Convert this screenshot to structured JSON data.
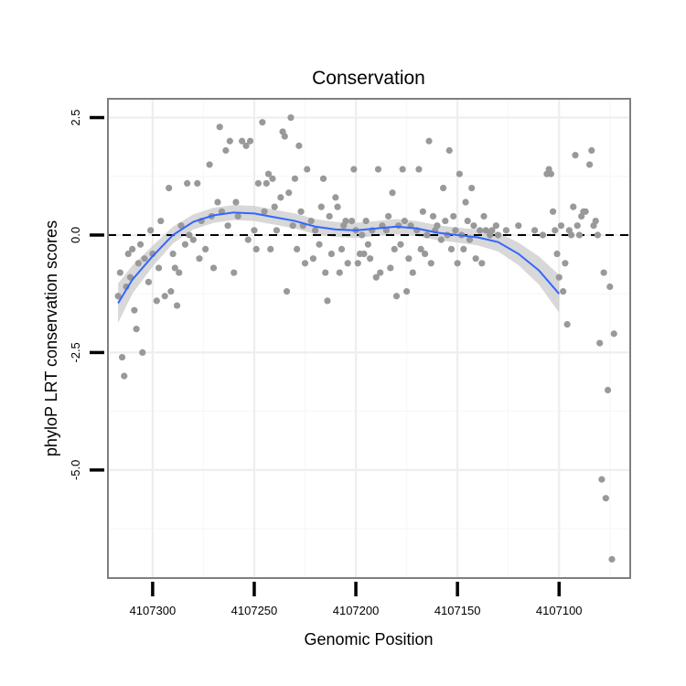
{
  "chart_data": {
    "type": "scatter",
    "title": "Conservation",
    "xlabel": "Genomic Position",
    "ylabel": "phyloP LRT conservation scores",
    "x_reversed": true,
    "xlim": [
      4107322,
      4107065
    ],
    "ylim": [
      -7.3,
      2.9
    ],
    "x_ticks": [
      4107300,
      4107250,
      4107200,
      4107150,
      4107100
    ],
    "x_tick_labels": [
      "4107300",
      "4107250",
      "4107200",
      "4107150",
      "4107100"
    ],
    "y_ticks": [
      2.5,
      0.0,
      -2.5,
      -5.0
    ],
    "y_tick_labels": [
      "2.5",
      "0.0",
      "-2.5",
      "-5.0"
    ],
    "reference_line": {
      "y": 0,
      "style": "dashed",
      "color": "#000000"
    },
    "point_color": "#999999",
    "smooth_color": "#3366ff",
    "band_color": "#c8c8c8",
    "grid": true,
    "points": [
      [
        4107317,
        -1.3
      ],
      [
        4107316,
        -0.8
      ],
      [
        4107315,
        -2.6
      ],
      [
        4107314,
        -3.0
      ],
      [
        4107313,
        -1.1
      ],
      [
        4107312,
        -0.4
      ],
      [
        4107311,
        -0.9
      ],
      [
        4107310,
        -0.3
      ],
      [
        4107309,
        -1.6
      ],
      [
        4107308,
        -2.0
      ],
      [
        4107307,
        -0.6
      ],
      [
        4107306,
        -0.2
      ],
      [
        4107305,
        -2.5
      ],
      [
        4107304,
        -0.5
      ],
      [
        4107302,
        -1.0
      ],
      [
        4107301,
        0.1
      ],
      [
        4107300,
        -0.4
      ],
      [
        4107298,
        -1.4
      ],
      [
        4107297,
        -0.7
      ],
      [
        4107296,
        0.3
      ],
      [
        4107294,
        -1.3
      ],
      [
        4107292,
        1.0
      ],
      [
        4107291,
        -1.2
      ],
      [
        4107290,
        -0.4
      ],
      [
        4107289,
        -0.7
      ],
      [
        4107288,
        -1.5
      ],
      [
        4107287,
        -0.8
      ],
      [
        4107286,
        0.2
      ],
      [
        4107284,
        -0.2
      ],
      [
        4107283,
        1.1
      ],
      [
        4107282,
        0.0
      ],
      [
        4107280,
        -0.1
      ],
      [
        4107278,
        1.1
      ],
      [
        4107277,
        -0.5
      ],
      [
        4107276,
        0.3
      ],
      [
        4107274,
        -0.3
      ],
      [
        4107272,
        1.5
      ],
      [
        4107271,
        0.4
      ],
      [
        4107270,
        -0.7
      ],
      [
        4107268,
        0.7
      ],
      [
        4107267,
        2.3
      ],
      [
        4107266,
        0.5
      ],
      [
        4107264,
        1.8
      ],
      [
        4107263,
        0.2
      ],
      [
        4107262,
        2.0
      ],
      [
        4107260,
        -0.8
      ],
      [
        4107259,
        0.7
      ],
      [
        4107258,
        0.4
      ],
      [
        4107256,
        2.0
      ],
      [
        4107254,
        1.9
      ],
      [
        4107253,
        -0.1
      ],
      [
        4107252,
        2.0
      ],
      [
        4107250,
        0.1
      ],
      [
        4107249,
        -0.3
      ],
      [
        4107248,
        1.1
      ],
      [
        4107246,
        2.4
      ],
      [
        4107245,
        0.5
      ],
      [
        4107244,
        1.1
      ],
      [
        4107243,
        1.3
      ],
      [
        4107242,
        -0.3
      ],
      [
        4107241,
        1.2
      ],
      [
        4107240,
        0.6
      ],
      [
        4107239,
        0.1
      ],
      [
        4107237,
        0.8
      ],
      [
        4107236,
        2.2
      ],
      [
        4107235,
        2.1
      ],
      [
        4107234,
        -1.2
      ],
      [
        4107233,
        0.9
      ],
      [
        4107232,
        2.5
      ],
      [
        4107231,
        0.2
      ],
      [
        4107230,
        1.2
      ],
      [
        4107229,
        -0.3
      ],
      [
        4107228,
        1.9
      ],
      [
        4107227,
        0.5
      ],
      [
        4107226,
        0.2
      ],
      [
        4107225,
        -0.6
      ],
      [
        4107224,
        1.4
      ],
      [
        4107222,
        0.3
      ],
      [
        4107221,
        -0.5
      ],
      [
        4107220,
        0.1
      ],
      [
        4107218,
        -0.2
      ],
      [
        4107217,
        0.6
      ],
      [
        4107216,
        1.2
      ],
      [
        4107215,
        -0.8
      ],
      [
        4107214,
        -1.4
      ],
      [
        4107213,
        0.4
      ],
      [
        4107212,
        -0.4
      ],
      [
        4107210,
        0.8
      ],
      [
        4107209,
        0.6
      ],
      [
        4107208,
        -0.8
      ],
      [
        4107207,
        -0.3
      ],
      [
        4107206,
        0.2
      ],
      [
        4107205,
        0.3
      ],
      [
        4107204,
        -0.6
      ],
      [
        4107202,
        0.3
      ],
      [
        4107201,
        1.4
      ],
      [
        4107200,
        0.1
      ],
      [
        4107199,
        -0.6
      ],
      [
        4107198,
        -0.4
      ],
      [
        4107197,
        0.0
      ],
      [
        4107196,
        -0.4
      ],
      [
        4107195,
        0.3
      ],
      [
        4107194,
        -0.2
      ],
      [
        4107193,
        -0.5
      ],
      [
        4107192,
        0.1
      ],
      [
        4107190,
        -0.9
      ],
      [
        4107189,
        1.4
      ],
      [
        4107188,
        -0.8
      ],
      [
        4107187,
        0.2
      ],
      [
        4107185,
        0.1
      ],
      [
        4107184,
        0.4
      ],
      [
        4107183,
        -0.7
      ],
      [
        4107182,
        0.9
      ],
      [
        4107181,
        -0.3
      ],
      [
        4107180,
        -1.3
      ],
      [
        4107179,
        0.2
      ],
      [
        4107178,
        -0.2
      ],
      [
        4107177,
        1.4
      ],
      [
        4107176,
        0.3
      ],
      [
        4107175,
        -1.2
      ],
      [
        4107174,
        -0.5
      ],
      [
        4107173,
        0.2
      ],
      [
        4107172,
        -0.8
      ],
      [
        4107170,
        0.1
      ],
      [
        4107169,
        1.4
      ],
      [
        4107168,
        -0.3
      ],
      [
        4107167,
        0.5
      ],
      [
        4107166,
        -0.4
      ],
      [
        4107165,
        0.0
      ],
      [
        4107164,
        2.0
      ],
      [
        4107163,
        -0.6
      ],
      [
        4107162,
        0.4
      ],
      [
        4107161,
        0.1
      ],
      [
        4107160,
        0.2
      ],
      [
        4107158,
        -0.1
      ],
      [
        4107157,
        1.0
      ],
      [
        4107156,
        0.3
      ],
      [
        4107155,
        0.0
      ],
      [
        4107154,
        1.8
      ],
      [
        4107153,
        -0.3
      ],
      [
        4107152,
        0.4
      ],
      [
        4107151,
        0.1
      ],
      [
        4107150,
        -0.6
      ],
      [
        4107149,
        1.3
      ],
      [
        4107148,
        0.0
      ],
      [
        4107147,
        -0.3
      ],
      [
        4107146,
        0.7
      ],
      [
        4107145,
        0.3
      ],
      [
        4107144,
        -0.1
      ],
      [
        4107143,
        1.0
      ],
      [
        4107142,
        0.2
      ],
      [
        4107141,
        -0.5
      ],
      [
        4107139,
        0.1
      ],
      [
        4107138,
        -0.6
      ],
      [
        4107137,
        0.4
      ],
      [
        4107136,
        0.1
      ],
      [
        4107134,
        0.0
      ],
      [
        4107133,
        0.1
      ],
      [
        4107131,
        0.2
      ],
      [
        4107130,
        0.0
      ],
      [
        4107126,
        0.1
      ],
      [
        4107120,
        0.2
      ],
      [
        4107112,
        0.1
      ],
      [
        4107108,
        0.0
      ],
      [
        4107106,
        1.3
      ],
      [
        4107105,
        1.4
      ],
      [
        4107104,
        1.3
      ],
      [
        4107103,
        0.5
      ],
      [
        4107102,
        0.1
      ],
      [
        4107101,
        -0.4
      ],
      [
        4107100,
        -0.9
      ],
      [
        4107099,
        0.2
      ],
      [
        4107098,
        -1.2
      ],
      [
        4107097,
        -0.6
      ],
      [
        4107096,
        -1.9
      ],
      [
        4107095,
        0.1
      ],
      [
        4107094,
        0.0
      ],
      [
        4107093,
        0.6
      ],
      [
        4107092,
        1.7
      ],
      [
        4107091,
        0.2
      ],
      [
        4107090,
        0.0
      ],
      [
        4107089,
        0.4
      ],
      [
        4107088,
        0.5
      ],
      [
        4107087,
        0.5
      ],
      [
        4107085,
        1.5
      ],
      [
        4107084,
        1.8
      ],
      [
        4107083,
        0.2
      ],
      [
        4107082,
        0.3
      ],
      [
        4107081,
        0.0
      ],
      [
        4107080,
        -2.3
      ],
      [
        4107079,
        -5.2
      ],
      [
        4107078,
        -0.8
      ],
      [
        4107077,
        -5.6
      ],
      [
        4107076,
        -3.3
      ],
      [
        4107075,
        -1.1
      ],
      [
        4107074,
        -6.9
      ],
      [
        4107073,
        -2.1
      ]
    ],
    "smooth_curve": [
      [
        4107317,
        -1.45
      ],
      [
        4107310,
        -0.95
      ],
      [
        4107300,
        -0.45
      ],
      [
        4107290,
        0.0
      ],
      [
        4107280,
        0.28
      ],
      [
        4107270,
        0.42
      ],
      [
        4107260,
        0.48
      ],
      [
        4107250,
        0.46
      ],
      [
        4107240,
        0.38
      ],
      [
        4107230,
        0.3
      ],
      [
        4107220,
        0.18
      ],
      [
        4107210,
        0.12
      ],
      [
        4107200,
        0.1
      ],
      [
        4107190,
        0.14
      ],
      [
        4107180,
        0.18
      ],
      [
        4107170,
        0.14
      ],
      [
        4107160,
        0.05
      ],
      [
        4107150,
        0.0
      ],
      [
        4107140,
        -0.05
      ],
      [
        4107130,
        -0.15
      ],
      [
        4107120,
        -0.4
      ],
      [
        4107110,
        -0.75
      ],
      [
        4107100,
        -1.25
      ]
    ],
    "band_half_width": [
      0.42,
      0.3,
      0.22,
      0.18,
      0.16,
      0.16,
      0.16,
      0.16,
      0.16,
      0.16,
      0.16,
      0.16,
      0.16,
      0.16,
      0.16,
      0.16,
      0.16,
      0.16,
      0.17,
      0.2,
      0.24,
      0.3,
      0.4
    ]
  }
}
